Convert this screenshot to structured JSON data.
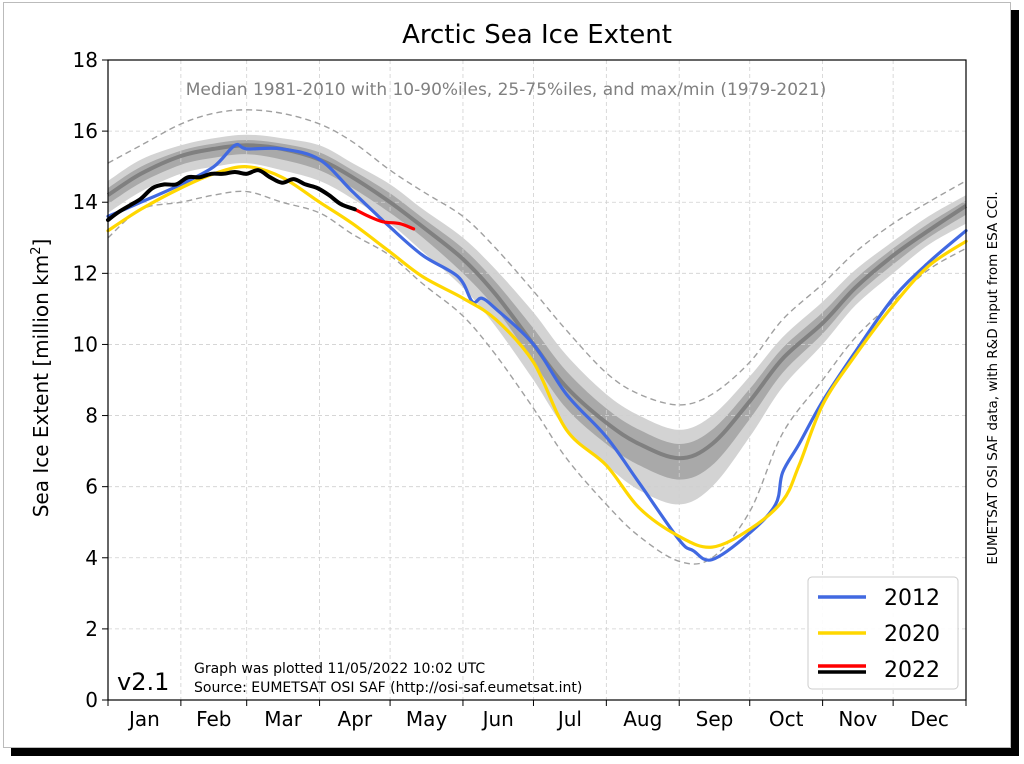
{
  "chart_data": {
    "type": "line",
    "title": "Arctic Sea Ice Extent",
    "subtitle": "Median 1981-2010 with 10-90%iles, 25-75%iles, and max/min (1979-2021)",
    "ylabel_main": "Sea Ice Extent [million km",
    "ylabel_sup": "2",
    "ylabel_end": "]",
    "ylim": [
      0,
      18
    ],
    "yticks": [
      "0",
      "2",
      "4",
      "6",
      "8",
      "10",
      "12",
      "14",
      "16",
      "18"
    ],
    "xlim": [
      1,
      366
    ],
    "months": [
      "Jan",
      "Feb",
      "Mar",
      "Apr",
      "May",
      "Jun",
      "Jul",
      "Aug",
      "Sep",
      "Oct",
      "Nov",
      "Dec"
    ],
    "month_starts": [
      1,
      32,
      60,
      91,
      121,
      152,
      182,
      213,
      244,
      274,
      305,
      335,
      366
    ],
    "version": "v2.1",
    "footnote_1": "Graph was plotted 11/05/2022 10:02 UTC",
    "footnote_2": "Source: EUMETSAT OSI SAF (http://osi-saf.eumetsat.int)",
    "side_note": "EUMETSAT OSI SAF data, with R&D input from ESA CCI.",
    "grid": true,
    "legend_position": "bottom-right",
    "climatology_days": [
      1,
      15,
      32,
      46,
      60,
      75,
      91,
      105,
      121,
      135,
      152,
      166,
      182,
      196,
      213,
      227,
      244,
      258,
      274,
      288,
      305,
      319,
      335,
      350,
      366
    ],
    "median": [
      14.2,
      14.8,
      15.3,
      15.5,
      15.6,
      15.5,
      15.2,
      14.7,
      14.0,
      13.3,
      12.4,
      11.4,
      10.0,
      8.8,
      7.8,
      7.2,
      6.8,
      7.2,
      8.4,
      9.6,
      10.6,
      11.6,
      12.5,
      13.2,
      13.9
    ],
    "p10": [
      13.7,
      14.3,
      14.8,
      15.0,
      15.1,
      14.9,
      14.6,
      14.1,
      13.4,
      12.6,
      11.6,
      10.5,
      9.0,
      7.6,
      6.6,
      5.9,
      5.5,
      6.0,
      7.4,
      8.8,
      10.0,
      11.1,
      12.0,
      12.8,
      13.4
    ],
    "p90": [
      14.6,
      15.2,
      15.6,
      15.8,
      15.9,
      15.8,
      15.6,
      15.1,
      14.5,
      13.8,
      13.0,
      12.1,
      10.9,
      9.7,
      8.6,
      8.0,
      7.6,
      8.0,
      9.1,
      10.2,
      11.2,
      12.1,
      12.9,
      13.6,
      14.2
    ],
    "p25": [
      13.95,
      14.55,
      15.05,
      15.25,
      15.35,
      15.2,
      14.9,
      14.4,
      13.7,
      13.0,
      12.0,
      11.0,
      9.5,
      8.2,
      7.2,
      6.6,
      6.2,
      6.6,
      7.9,
      9.2,
      10.3,
      11.35,
      12.25,
      13.0,
      13.65
    ],
    "p75": [
      14.4,
      15.0,
      15.45,
      15.65,
      15.75,
      15.65,
      15.4,
      14.9,
      14.25,
      13.55,
      12.7,
      11.75,
      10.45,
      9.25,
      8.2,
      7.6,
      7.2,
      7.6,
      8.75,
      9.9,
      10.9,
      11.85,
      12.7,
      13.4,
      14.05
    ],
    "min": [
      13.0,
      13.8,
      14.0,
      14.2,
      14.3,
      14.0,
      13.7,
      13.1,
      12.5,
      11.7,
      10.8,
      9.7,
      8.2,
      6.8,
      5.5,
      4.6,
      3.9,
      4.0,
      5.3,
      7.5,
      9.0,
      10.2,
      11.2,
      12.1,
      12.7
    ],
    "max": [
      15.1,
      15.6,
      16.2,
      16.5,
      16.6,
      16.5,
      16.2,
      15.7,
      14.9,
      14.3,
      13.6,
      12.7,
      11.5,
      10.4,
      9.2,
      8.6,
      8.3,
      8.6,
      9.5,
      10.7,
      11.7,
      12.6,
      13.4,
      14.0,
      14.6
    ],
    "series": [
      {
        "name": "2012",
        "color": "#4169e1",
        "x": [
          1,
          15,
          32,
          46,
          55,
          60,
          75,
          91,
          105,
          121,
          135,
          150,
          156,
          160,
          166,
          182,
          196,
          213,
          227,
          244,
          250,
          258,
          274,
          285,
          288,
          295,
          305,
          319,
          335,
          350,
          366
        ],
        "y": [
          13.6,
          14.0,
          14.5,
          15.0,
          15.6,
          15.5,
          15.5,
          15.2,
          14.3,
          13.3,
          12.5,
          11.9,
          11.2,
          11.3,
          11.0,
          10.0,
          8.6,
          7.4,
          6.1,
          4.5,
          4.2,
          3.95,
          4.7,
          5.5,
          6.4,
          7.2,
          8.4,
          9.8,
          11.3,
          12.3,
          13.2
        ]
      },
      {
        "name": "2020",
        "color": "#ffd700",
        "x": [
          1,
          15,
          32,
          46,
          60,
          75,
          91,
          105,
          121,
          135,
          152,
          166,
          182,
          196,
          213,
          227,
          244,
          258,
          274,
          288,
          295,
          305,
          319,
          335,
          350,
          366
        ],
        "y": [
          13.2,
          13.8,
          14.4,
          14.8,
          15.0,
          14.7,
          14.0,
          13.4,
          12.6,
          11.9,
          11.3,
          10.7,
          9.5,
          7.6,
          6.6,
          5.4,
          4.6,
          4.3,
          4.8,
          5.6,
          6.6,
          8.3,
          9.7,
          11.1,
          12.2,
          12.9
        ]
      },
      {
        "name": "2022",
        "color": "#ff0000",
        "x": [
          106,
          112,
          118,
          125,
          131
        ],
        "y": [
          13.8,
          13.6,
          13.45,
          13.4,
          13.25
        ]
      },
      {
        "name": "2022",
        "color": "#000000",
        "x": [
          1,
          5,
          10,
          15,
          20,
          25,
          30,
          35,
          40,
          45,
          50,
          55,
          60,
          65,
          70,
          75,
          80,
          85,
          90,
          95,
          100,
          106
        ],
        "y": [
          13.5,
          13.7,
          13.9,
          14.1,
          14.4,
          14.5,
          14.5,
          14.7,
          14.7,
          14.8,
          14.8,
          14.85,
          14.8,
          14.9,
          14.7,
          14.55,
          14.65,
          14.5,
          14.4,
          14.2,
          13.95,
          13.8
        ]
      }
    ],
    "legend": [
      {
        "label": "2012",
        "color": "#4169e1"
      },
      {
        "label": "2020",
        "color": "#ffd700"
      },
      {
        "label": "2022",
        "color": "#ff0000",
        "color2": "#000000"
      }
    ]
  }
}
